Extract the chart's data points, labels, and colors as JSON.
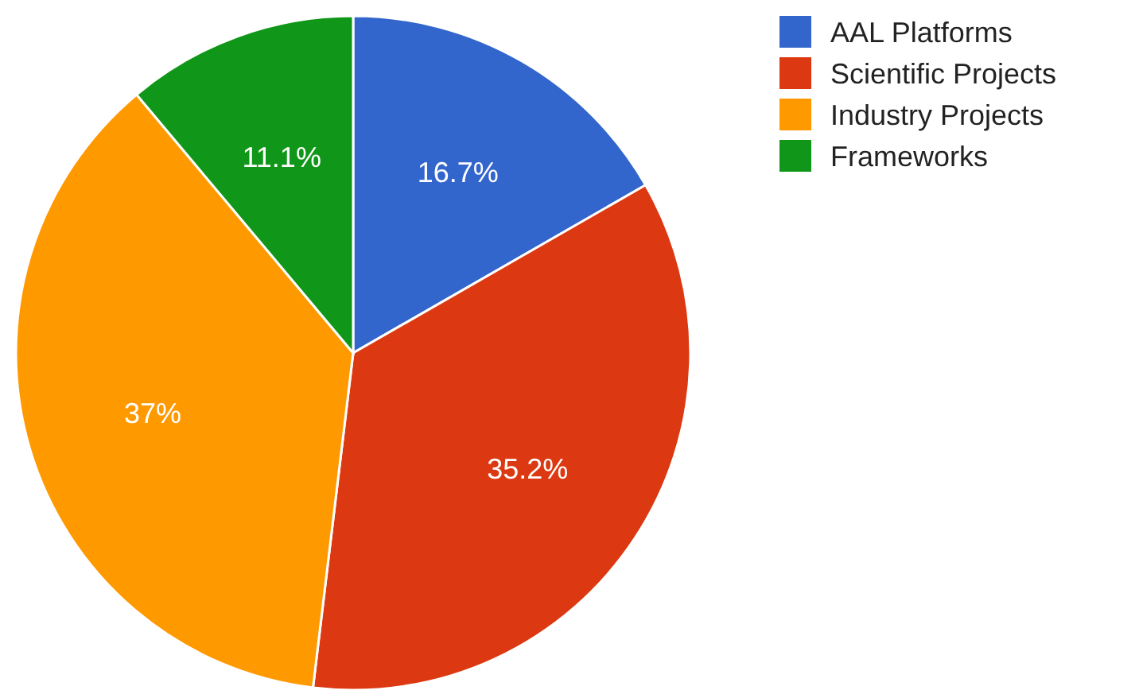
{
  "chart_data": {
    "type": "pie",
    "categories": [
      "AAL Platforms",
      "Scientific Projects",
      "Industry Projects",
      "Frameworks"
    ],
    "values": [
      16.7,
      35.2,
      37,
      11.1
    ],
    "value_labels": [
      "16.7%",
      "35.2%",
      "37%",
      "11.1%"
    ],
    "colors": [
      "#3366cc",
      "#dc3912",
      "#ff9900",
      "#109618"
    ],
    "legend": "top right"
  }
}
